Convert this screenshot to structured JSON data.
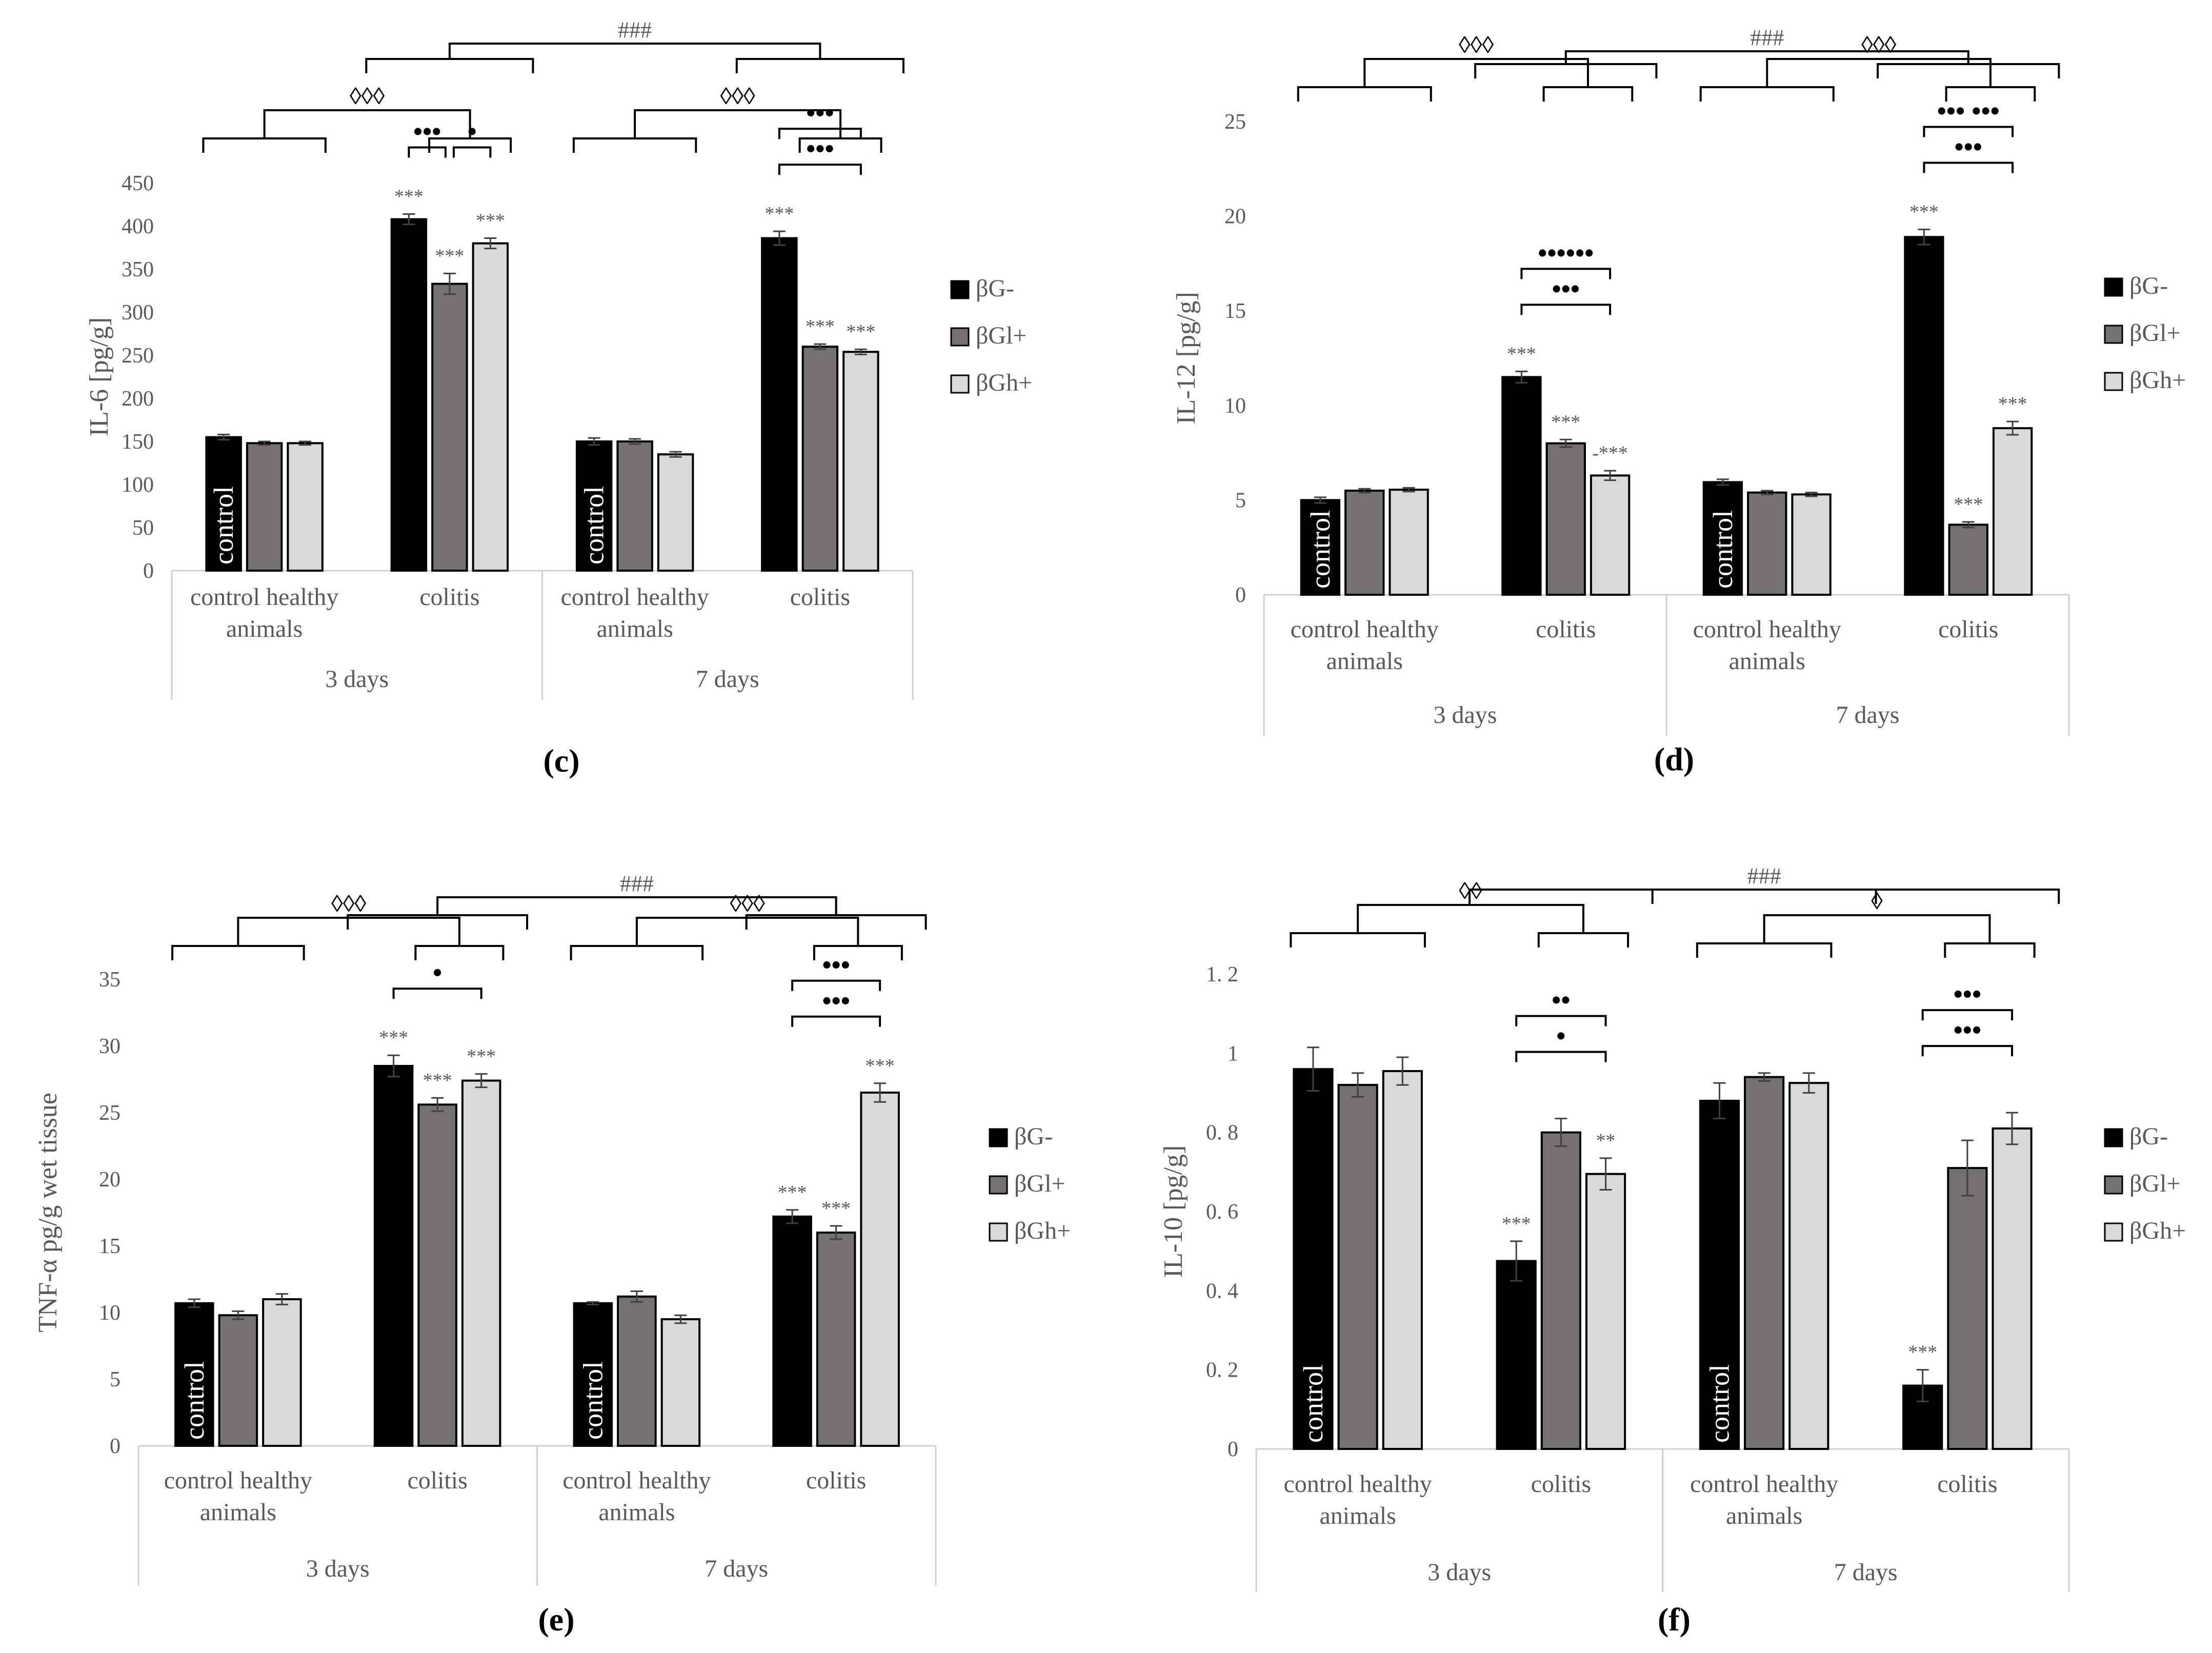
{
  "series_names": [
    "βG-",
    "βGl+",
    "βGh+"
  ],
  "colors": {
    "bG_minus": "#000000",
    "bGl_plus": "#767171",
    "bGh_plus": "#d9d9d9",
    "axis": "#d0d0d0",
    "text": "#595959",
    "sig": "#000000"
  },
  "groups": [
    {
      "day": "3 days",
      "categories": [
        "control healthy animals",
        "colitis"
      ]
    },
    {
      "day": "7 days",
      "categories": [
        "control healthy animals",
        "colitis"
      ]
    }
  ],
  "control_label": "control",
  "charts": [
    {
      "id": "c",
      "panel_label": "(c)",
      "ylabel": "IL-6 [pg/g]",
      "ylim": [
        0,
        450
      ],
      "ticks": [
        0,
        50,
        100,
        150,
        200,
        250,
        300,
        350,
        400,
        450
      ],
      "tick_labels": [
        "0",
        "50",
        "100",
        "150",
        "200",
        "250",
        "300",
        "350",
        "400",
        "450"
      ],
      "values": [
        [
          155,
          148,
          148
        ],
        [
          408,
          333,
          380
        ],
        [
          150,
          150,
          135
        ],
        [
          386,
          260,
          254
        ]
      ],
      "errors": [
        [
          3,
          2,
          2
        ],
        [
          6,
          12,
          6
        ],
        [
          4,
          3,
          3
        ],
        [
          8,
          3,
          3
        ]
      ],
      "stars": [
        [],
        [
          "***",
          "***",
          "***"
        ],
        [],
        [
          "***",
          "***",
          "***"
        ]
      ],
      "overall_sig": "###",
      "group_sig": [
        "◊◊◊",
        "◊◊◊"
      ],
      "within": [
        [
          [
            "•••",
            "•"
          ]
        ],
        [
          [
            "•••"
          ],
          [
            "•••"
          ]
        ]
      ]
    },
    {
      "id": "d",
      "panel_label": "(d)",
      "ylabel": "IL-12 [pg/g]",
      "ylim": [
        0,
        25
      ],
      "ticks": [
        0,
        5,
        10,
        15,
        20,
        25
      ],
      "tick_labels": [
        "0",
        "5",
        "10",
        "15",
        "20",
        "25"
      ],
      "values": [
        [
          5.0,
          5.5,
          5.55
        ],
        [
          11.5,
          8.0,
          6.3
        ],
        [
          5.95,
          5.4,
          5.3
        ],
        [
          18.9,
          3.7,
          8.8
        ]
      ],
      "errors": [
        [
          0.15,
          0.1,
          0.1
        ],
        [
          0.3,
          0.2,
          0.25
        ],
        [
          0.15,
          0.1,
          0.1
        ],
        [
          0.4,
          0.15,
          0.35
        ]
      ],
      "stars": [
        [],
        [
          "***",
          "***",
          "-***"
        ],
        [],
        [
          "***",
          "***",
          "***"
        ]
      ],
      "overall_sig": "###",
      "group_sig": [
        "◊◊◊",
        "◊◊◊"
      ],
      "within": [
        [
          [
            "•••"
          ],
          [
            "••••••"
          ]
        ],
        [
          [
            "•••"
          ],
          [
            "••• •••"
          ]
        ]
      ]
    },
    {
      "id": "e",
      "panel_label": "(e)",
      "ylabel": "TNF-α pg/g wet tissue",
      "ylim": [
        0,
        35
      ],
      "ticks": [
        0,
        5,
        10,
        15,
        20,
        25,
        30,
        35
      ],
      "tick_labels": [
        "0",
        "5",
        "10",
        "15",
        "20",
        "25",
        "30",
        "35"
      ],
      "values": [
        [
          10.7,
          9.8,
          11.0
        ],
        [
          28.5,
          25.6,
          27.4
        ],
        [
          10.7,
          11.2,
          9.5
        ],
        [
          17.2,
          16.0,
          26.5
        ]
      ],
      "errors": [
        [
          0.3,
          0.3,
          0.4
        ],
        [
          0.8,
          0.5,
          0.5
        ],
        [
          0.1,
          0.4,
          0.3
        ],
        [
          0.5,
          0.5,
          0.7
        ]
      ],
      "stars": [
        [],
        [
          "***",
          "***",
          "***"
        ],
        [],
        [
          "***",
          "***",
          "***"
        ]
      ],
      "overall_sig": "###",
      "group_sig": [
        "◊◊◊",
        "◊◊◊"
      ],
      "within": [
        [
          [
            "•"
          ]
        ],
        [
          [
            "•••"
          ],
          [
            "•••"
          ]
        ]
      ]
    },
    {
      "id": "f",
      "panel_label": "(f)",
      "ylabel": "IL-10 [pg/g]",
      "ylim": [
        0,
        1.2
      ],
      "ticks": [
        0,
        0.2,
        0.4,
        0.6,
        0.8,
        1.0,
        1.2
      ],
      "tick_labels": [
        "0",
        "0. 2",
        "0. 4",
        "0. 6",
        "0. 8",
        "1",
        "1. 2"
      ],
      "values": [
        [
          0.96,
          0.92,
          0.955
        ],
        [
          0.475,
          0.8,
          0.695
        ],
        [
          0.88,
          0.94,
          0.925
        ],
        [
          0.16,
          0.71,
          0.81
        ]
      ],
      "errors": [
        [
          0.055,
          0.03,
          0.035
        ],
        [
          0.05,
          0.035,
          0.04
        ],
        [
          0.045,
          0.01,
          0.025
        ],
        [
          0.04,
          0.07,
          0.04
        ]
      ],
      "stars": [
        [],
        [
          "***",
          "",
          "**"
        ],
        [],
        [
          "***",
          "",
          ""
        ]
      ],
      "overall_sig": "###",
      "group_sig": [
        "◊◊",
        "◊"
      ],
      "within": [
        [
          [
            "•"
          ],
          [
            "••"
          ]
        ],
        [
          [
            "•••"
          ],
          [
            "•••"
          ]
        ]
      ]
    }
  ],
  "chart_data": [
    {
      "type": "bar",
      "title": "(c)",
      "ylabel": "IL-6 [pg/g]",
      "ylim": [
        0,
        450
      ],
      "categories": [
        "3 days / control healthy animals",
        "3 days / colitis",
        "7 days / control healthy animals",
        "7 days / colitis"
      ],
      "series": [
        {
          "name": "βG-",
          "values": [
            155,
            408,
            150,
            386
          ]
        },
        {
          "name": "βGl+",
          "values": [
            148,
            333,
            150,
            260
          ]
        },
        {
          "name": "βGh+",
          "values": [
            148,
            380,
            135,
            254
          ]
        }
      ]
    },
    {
      "type": "bar",
      "title": "(d)",
      "ylabel": "IL-12 [pg/g]",
      "ylim": [
        0,
        25
      ],
      "categories": [
        "3 days / control healthy animals",
        "3 days / colitis",
        "7 days / control healthy animals",
        "7 days / colitis"
      ],
      "series": [
        {
          "name": "βG-",
          "values": [
            5.0,
            11.5,
            5.95,
            18.9
          ]
        },
        {
          "name": "βGl+",
          "values": [
            5.5,
            8.0,
            5.4,
            3.7
          ]
        },
        {
          "name": "βGh+",
          "values": [
            5.55,
            6.3,
            5.3,
            8.8
          ]
        }
      ]
    },
    {
      "type": "bar",
      "title": "(e)",
      "ylabel": "TNF-α pg/g wet tissue",
      "ylim": [
        0,
        35
      ],
      "categories": [
        "3 days / control healthy animals",
        "3 days / colitis",
        "7 days / control healthy animals",
        "7 days / colitis"
      ],
      "series": [
        {
          "name": "βG-",
          "values": [
            10.7,
            28.5,
            10.7,
            17.2
          ]
        },
        {
          "name": "βGl+",
          "values": [
            9.8,
            25.6,
            11.2,
            16.0
          ]
        },
        {
          "name": "βGh+",
          "values": [
            11.0,
            27.4,
            9.5,
            26.5
          ]
        }
      ]
    },
    {
      "type": "bar",
      "title": "(f)",
      "ylabel": "IL-10 [pg/g]",
      "ylim": [
        0,
        1.2
      ],
      "categories": [
        "3 days / control healthy animals",
        "3 days / colitis",
        "7 days / control healthy animals",
        "7 days / colitis"
      ],
      "series": [
        {
          "name": "βG-",
          "values": [
            0.96,
            0.475,
            0.88,
            0.16
          ]
        },
        {
          "name": "βGl+",
          "values": [
            0.92,
            0.8,
            0.94,
            0.71
          ]
        },
        {
          "name": "βGh+",
          "values": [
            0.955,
            0.695,
            0.925,
            0.81
          ]
        }
      ]
    }
  ]
}
